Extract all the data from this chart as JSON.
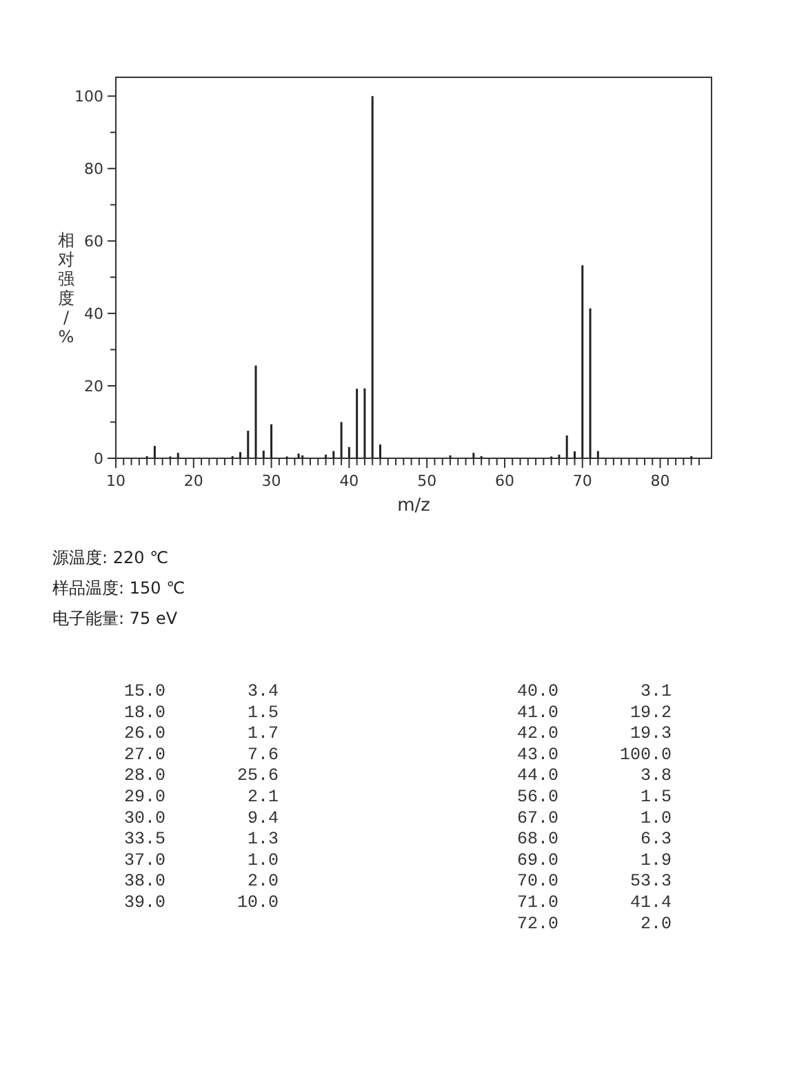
{
  "chart_data": {
    "type": "bar",
    "xlabel": "m/z",
    "ylabel": "相对强度/%",
    "x": [
      14,
      15,
      17,
      18,
      25,
      26,
      27,
      28,
      29,
      30,
      32,
      33.5,
      34,
      37,
      38,
      39,
      40,
      41,
      42,
      43,
      44,
      53,
      56,
      57,
      66,
      67,
      68,
      69,
      70,
      71,
      72,
      84
    ],
    "values": [
      0.6,
      3.4,
      0.5,
      1.5,
      0.6,
      1.7,
      7.6,
      25.6,
      2.1,
      9.4,
      0.5,
      1.3,
      0.8,
      1.0,
      2.0,
      10.0,
      3.1,
      19.2,
      19.3,
      100.0,
      3.8,
      0.8,
      1.5,
      0.6,
      0.5,
      1.0,
      6.3,
      1.9,
      53.3,
      41.4,
      2.0,
      0.6
    ],
    "color": "#222222",
    "xlim": [
      10,
      86.6
    ],
    "ylim": [
      0,
      105.2
    ],
    "xticks": [
      10,
      {
        "value": 11,
        "label": null
      },
      {
        "value": 12,
        "label": null
      },
      {
        "value": 13,
        "label": null
      },
      {
        "value": 14,
        "label": null
      },
      {
        "value": 15,
        "label": null
      },
      {
        "value": 16,
        "label": null
      },
      {
        "value": 17,
        "label": null
      },
      {
        "value": 18,
        "label": null
      },
      {
        "value": 19,
        "label": null
      },
      20,
      {
        "value": 21,
        "label": null
      },
      {
        "value": 22,
        "label": null
      },
      {
        "value": 23,
        "label": null
      },
      {
        "value": 24,
        "label": null
      },
      {
        "value": 25,
        "label": null
      },
      {
        "value": 26,
        "label": null
      },
      {
        "value": 27,
        "label": null
      },
      {
        "value": 28,
        "label": null
      },
      {
        "value": 29,
        "label": null
      },
      30,
      {
        "value": 31,
        "label": null
      },
      {
        "value": 32,
        "label": null
      },
      {
        "value": 33,
        "label": null
      },
      {
        "value": 34,
        "label": null
      },
      {
        "value": 35,
        "label": null
      },
      {
        "value": 36,
        "label": null
      },
      {
        "value": 37,
        "label": null
      },
      {
        "value": 38,
        "label": null
      },
      {
        "value": 39,
        "label": null
      },
      40,
      {
        "value": 41,
        "label": null
      },
      {
        "value": 42,
        "label": null
      },
      {
        "value": 43,
        "label": null
      },
      {
        "value": 44,
        "label": null
      },
      {
        "value": 45,
        "label": null
      },
      {
        "value": 46,
        "label": null
      },
      {
        "value": 47,
        "label": null
      },
      {
        "value": 48,
        "label": null
      },
      {
        "value": 49,
        "label": null
      },
      50,
      {
        "value": 51,
        "label": null
      },
      {
        "value": 52,
        "label": null
      },
      {
        "value": 53,
        "label": null
      },
      {
        "value": 54,
        "label": null
      },
      {
        "value": 55,
        "label": null
      },
      {
        "value": 56,
        "label": null
      },
      {
        "value": 57,
        "label": null
      },
      {
        "value": 58,
        "label": null
      },
      {
        "value": 59,
        "label": null
      },
      60,
      {
        "value": 61,
        "label": null
      },
      {
        "value": 62,
        "label": null
      },
      {
        "value": 63,
        "label": null
      },
      {
        "value": 64,
        "label": null
      },
      {
        "value": 65,
        "label": null
      },
      {
        "value": 66,
        "label": null
      },
      {
        "value": 67,
        "label": null
      },
      {
        "value": 68,
        "label": null
      },
      {
        "value": 69,
        "label": null
      },
      70,
      {
        "value": 71,
        "label": null
      },
      {
        "value": 72,
        "label": null
      },
      {
        "value": 73,
        "label": null
      },
      {
        "value": 74,
        "label": null
      },
      {
        "value": 75,
        "label": null
      },
      {
        "value": 76,
        "label": null
      },
      {
        "value": 77,
        "label": null
      },
      {
        "value": 78,
        "label": null
      },
      {
        "value": 79,
        "label": null
      },
      80,
      {
        "value": 81,
        "label": null
      },
      {
        "value": 82,
        "label": null
      },
      {
        "value": 83,
        "label": null
      },
      {
        "value": 84,
        "label": null
      },
      {
        "value": 85,
        "label": null
      }
    ],
    "yticks": [
      0,
      {
        "value": 10,
        "label": null
      },
      20,
      {
        "value": 30,
        "label": null
      },
      40,
      {
        "value": 50,
        "label": null
      },
      60,
      {
        "value": 70,
        "label": null
      },
      80,
      {
        "value": 90,
        "label": null
      },
      100
    ],
    "annotations": [
      "源温度: 220 ℃",
      "样品温度: 150 ℃",
      "电子能量: 75 eV",
      "15.0",
      "3.4",
      "18.0",
      "1.5",
      "26.0",
      "1.7",
      "27.0",
      "7.6",
      "28.0",
      "25.6",
      "29.0",
      "2.1",
      "30.0",
      "9.4",
      "33.5",
      "1.3",
      "37.0",
      "1.0",
      "38.0",
      "2.0",
      "39.0",
      "10.0",
      "40.0",
      "3.1",
      "41.0",
      "19.2",
      "42.0",
      "19.3",
      "43.0",
      "100.0",
      "44.0",
      "3.8",
      "56.0",
      "1.5",
      "67.0",
      "1.0",
      "68.0",
      "6.3",
      "69.0",
      "1.9",
      "70.0",
      "53.3",
      "71.0",
      "41.4",
      "72.0",
      "2.0"
    ]
  }
}
